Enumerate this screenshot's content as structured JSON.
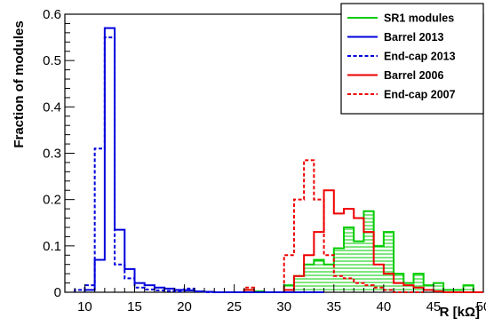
{
  "chart_data": {
    "type": "histogram",
    "xlabel": "R [kΩ]",
    "ylabel": "Fraction of modules",
    "xlim": [
      8,
      50
    ],
    "ylim": [
      0,
      0.6
    ],
    "x_ticks": [
      "10",
      "15",
      "20",
      "25",
      "30",
      "35",
      "40",
      "45",
      "50"
    ],
    "y_ticks": [
      "0",
      "0.1",
      "0.2",
      "0.3",
      "0.4",
      "0.5",
      "0.6"
    ],
    "bin_width": 1,
    "legend_position": "top-right",
    "series": [
      {
        "name": "SR1 modules",
        "color": "#00cc00",
        "style": "solid, hatched fill",
        "bins": [
          [
            26,
            0.005
          ],
          [
            27,
            0.002
          ],
          [
            28,
            0.0
          ],
          [
            29,
            0.0
          ],
          [
            30,
            0.015
          ],
          [
            31,
            0.035
          ],
          [
            32,
            0.06
          ],
          [
            33,
            0.07
          ],
          [
            34,
            0.06
          ],
          [
            35,
            0.095
          ],
          [
            36,
            0.14
          ],
          [
            37,
            0.11
          ],
          [
            38,
            0.175
          ],
          [
            39,
            0.1
          ],
          [
            40,
            0.13
          ],
          [
            41,
            0.04
          ],
          [
            42,
            0.02
          ],
          [
            43,
            0.04
          ],
          [
            44,
            0.015
          ],
          [
            45,
            0.02
          ],
          [
            46,
            0.005
          ],
          [
            47,
            0.005
          ],
          [
            48,
            0.015
          ],
          [
            49,
            0.0
          ]
        ]
      },
      {
        "name": "Barrel 2013",
        "color": "#0000dd",
        "style": "solid",
        "bins": [
          [
            10,
            0.005
          ],
          [
            11,
            0.07
          ],
          [
            12,
            0.57
          ],
          [
            13,
            0.135
          ],
          [
            14,
            0.05
          ],
          [
            15,
            0.02
          ],
          [
            16,
            0.015
          ],
          [
            17,
            0.01
          ],
          [
            18,
            0.008
          ],
          [
            19,
            0.005
          ],
          [
            20,
            0.004
          ],
          [
            21,
            0.002
          ],
          [
            22,
            0.001
          ],
          [
            23,
            0.0
          ],
          [
            24,
            0.0
          ],
          [
            25,
            0.0
          ],
          [
            26,
            0.0
          ],
          [
            27,
            0.0
          ],
          [
            28,
            0.0
          ],
          [
            29,
            0.0
          ],
          [
            30,
            0.0
          ],
          [
            31,
            0.0
          ],
          [
            32,
            0.0
          ],
          [
            33,
            0.0
          ]
        ]
      },
      {
        "name": "End-cap 2013",
        "color": "#0000dd",
        "style": "dashed",
        "bins": [
          [
            9,
            0.005
          ],
          [
            10,
            0.015
          ],
          [
            11,
            0.31
          ],
          [
            12,
            0.55
          ],
          [
            13,
            0.06
          ],
          [
            14,
            0.03
          ],
          [
            15,
            0.01
          ],
          [
            16,
            0.006
          ],
          [
            17,
            0.004
          ],
          [
            18,
            0.003
          ],
          [
            19,
            0.002
          ],
          [
            20,
            0.008
          ],
          [
            21,
            0.002
          ],
          [
            22,
            0.0
          ],
          [
            23,
            0.0
          ],
          [
            24,
            0.0
          ],
          [
            25,
            0.0
          ],
          [
            26,
            0.0
          ]
        ]
      },
      {
        "name": "Barrel 2006",
        "color": "#ee0000",
        "style": "solid",
        "bins": [
          [
            26,
            0.005
          ],
          [
            27,
            0.0
          ],
          [
            28,
            0.0
          ],
          [
            29,
            0.0
          ],
          [
            30,
            0.005
          ],
          [
            31,
            0.035
          ],
          [
            32,
            0.08
          ],
          [
            33,
            0.13
          ],
          [
            34,
            0.22
          ],
          [
            35,
            0.17
          ],
          [
            36,
            0.18
          ],
          [
            37,
            0.16
          ],
          [
            38,
            0.13
          ],
          [
            39,
            0.06
          ],
          [
            40,
            0.04
          ],
          [
            41,
            0.02
          ],
          [
            42,
            0.015
          ],
          [
            43,
            0.01
          ],
          [
            44,
            0.005
          ],
          [
            45,
            0.002
          ],
          [
            46,
            0.0
          ],
          [
            47,
            0.0
          ],
          [
            48,
            0.0
          ],
          [
            49,
            0.0
          ]
        ]
      },
      {
        "name": "End-cap 2007",
        "color": "#ee0000",
        "style": "dashed",
        "bins": [
          [
            26,
            0.01
          ],
          [
            27,
            0.0
          ],
          [
            28,
            0.0
          ],
          [
            29,
            0.0
          ],
          [
            30,
            0.08
          ],
          [
            31,
            0.2
          ],
          [
            32,
            0.285
          ],
          [
            33,
            0.2
          ],
          [
            34,
            0.08
          ],
          [
            35,
            0.035
          ],
          [
            36,
            0.03
          ],
          [
            37,
            0.02
          ],
          [
            38,
            0.015
          ],
          [
            39,
            0.01
          ],
          [
            40,
            0.005
          ],
          [
            41,
            0.0
          ],
          [
            42,
            0.0
          ],
          [
            43,
            0.0
          ]
        ]
      }
    ]
  }
}
